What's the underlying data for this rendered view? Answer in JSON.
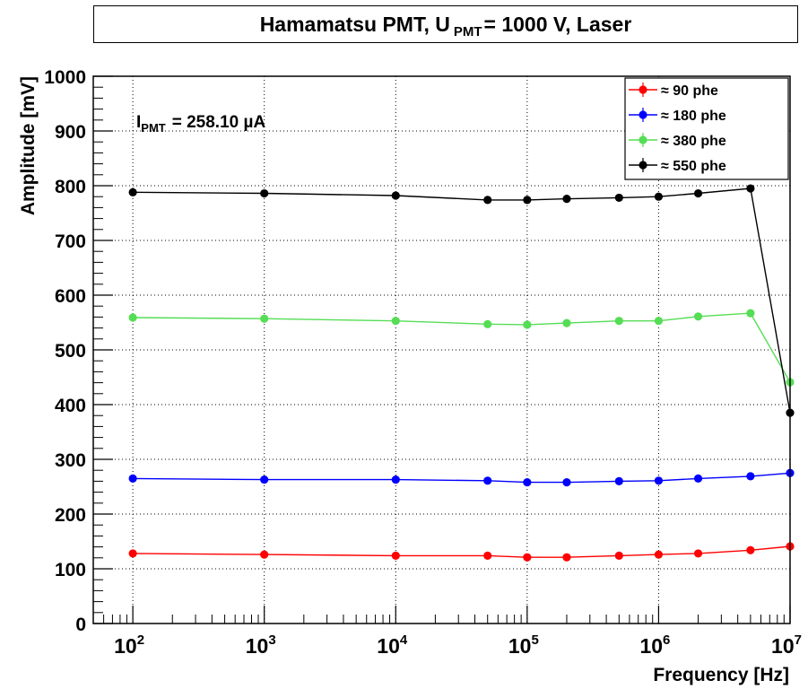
{
  "chart_data": {
    "type": "line",
    "title": {
      "main": "Hamamatsu PMT, U",
      "sub": "PMT",
      "tail": "= 1000 V, Laser"
    },
    "xlabel": "Frequency [Hz]",
    "ylabel": "Amplitude [mV]",
    "x_scale": "log",
    "xlim": [
      50,
      10000000
    ],
    "ylim": [
      0,
      1000
    ],
    "grid": true,
    "legend_position": "top-right",
    "y_ticks": [
      0,
      100,
      200,
      300,
      400,
      500,
      600,
      700,
      800,
      900,
      1000
    ],
    "x_major_ticks": [
      {
        "value": 100,
        "base": "10",
        "exp": "2"
      },
      {
        "value": 1000,
        "base": "10",
        "exp": "3"
      },
      {
        "value": 10000,
        "base": "10",
        "exp": "4"
      },
      {
        "value": 100000,
        "base": "10",
        "exp": "5"
      },
      {
        "value": 1000000,
        "base": "10",
        "exp": "6"
      },
      {
        "value": 10000000,
        "base": "10",
        "exp": "7"
      }
    ],
    "annotation": {
      "main": "I",
      "sub": "PMT",
      "tail": "= 258.10 µA"
    },
    "x": [
      100,
      1000,
      10000,
      50000,
      100000,
      200000,
      500000,
      1000000,
      2000000,
      5000000,
      10000000
    ],
    "series": [
      {
        "name": "≈ 90 phe",
        "color": "#ff0000",
        "values": [
          128,
          126,
          124,
          124,
          121,
          121,
          124,
          126,
          128,
          134,
          141
        ]
      },
      {
        "name": "≈ 180 phe",
        "color": "#0000ff",
        "values": [
          265,
          263,
          263,
          261,
          258,
          258,
          260,
          261,
          265,
          269,
          275
        ]
      },
      {
        "name": "≈ 380 phe",
        "color": "#55dd55",
        "values": [
          559,
          557,
          553,
          547,
          546,
          549,
          553,
          553,
          561,
          567,
          441
        ]
      },
      {
        "name": "≈ 550 phe",
        "color": "#000000",
        "values": [
          788,
          786,
          782,
          774,
          774,
          776,
          778,
          780,
          786,
          795,
          385
        ]
      }
    ]
  }
}
